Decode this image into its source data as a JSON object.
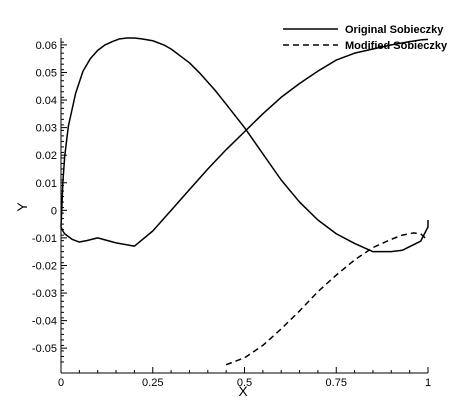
{
  "chart_data": {
    "type": "line",
    "xlabel": "X",
    "ylabel": "Y",
    "xlim": [
      0,
      1
    ],
    "ylim": [
      -0.059,
      0.0625
    ],
    "xticks": [
      0,
      0.25,
      0.5,
      0.75,
      1
    ],
    "xtick_labels": [
      "0",
      "0.25",
      "0.5",
      "0.75",
      "1"
    ],
    "yticks": [
      0.06,
      0.05,
      0.04,
      0.03,
      0.02,
      0.01,
      0,
      -0.01,
      -0.02,
      -0.03,
      -0.04,
      -0.05
    ],
    "ytick_labels": [
      "0.06",
      "0.05",
      "0.04",
      "0.03",
      "0.02",
      "0.01",
      "0",
      "-0.01",
      "-0.02",
      "-0.03",
      "-0.04",
      "-0.05"
    ],
    "grid": false,
    "legend_position": "top-right",
    "series": [
      {
        "name": "Original Sobieczky",
        "style": "solid",
        "color": "#000000",
        "x": [
          1.0,
          0.98,
          0.95,
          0.9,
          0.85,
          0.8,
          0.75,
          0.7,
          0.65,
          0.6,
          0.55,
          0.5,
          0.45,
          0.4,
          0.35,
          0.3,
          0.25,
          0.2,
          0.15,
          0.1,
          0.07,
          0.05,
          0.03,
          0.02,
          0.01,
          0.005,
          0.0,
          0.002,
          0.005,
          0.01,
          0.02,
          0.04,
          0.06,
          0.08,
          0.1,
          0.12,
          0.14,
          0.16,
          0.18,
          0.2,
          0.22,
          0.25,
          0.28,
          0.3,
          0.33,
          0.35,
          0.38,
          0.4,
          0.42,
          0.45,
          0.5,
          0.55,
          0.6,
          0.65,
          0.7,
          0.75,
          0.8,
          0.85,
          0.9,
          0.93,
          0.96,
          0.98,
          1.0,
          1.0
        ],
        "y": [
          0.062,
          0.0618,
          0.0612,
          0.06,
          0.0585,
          0.057,
          0.0545,
          0.0505,
          0.046,
          0.041,
          0.035,
          0.0285,
          0.022,
          0.015,
          0.0075,
          0.0,
          -0.0075,
          -0.013,
          -0.0118,
          -0.01,
          -0.011,
          -0.0115,
          -0.0105,
          -0.0095,
          -0.0085,
          -0.0075,
          -0.006,
          0.0,
          0.01,
          0.0195,
          0.0305,
          0.0425,
          0.0505,
          0.055,
          0.058,
          0.06,
          0.0612,
          0.0622,
          0.0625,
          0.0625,
          0.0622,
          0.0615,
          0.06,
          0.0585,
          0.0555,
          0.0535,
          0.0495,
          0.0465,
          0.0435,
          0.0385,
          0.03,
          0.0205,
          0.011,
          0.003,
          -0.0035,
          -0.0085,
          -0.012,
          -0.015,
          -0.015,
          -0.0145,
          -0.0125,
          -0.0112,
          -0.006,
          -0.0035
        ]
      },
      {
        "name": "Modified Sobieczky",
        "style": "dashed",
        "color": "#000000",
        "x": [
          0.45,
          0.5,
          0.55,
          0.6,
          0.65,
          0.7,
          0.75,
          0.8,
          0.85,
          0.9,
          0.93,
          0.96,
          0.98,
          1.0
        ],
        "y": [
          -0.056,
          -0.0535,
          -0.049,
          -0.043,
          -0.0365,
          -0.0295,
          -0.0235,
          -0.018,
          -0.0135,
          -0.0105,
          -0.009,
          -0.0082,
          -0.0085,
          -0.011
        ]
      }
    ]
  }
}
